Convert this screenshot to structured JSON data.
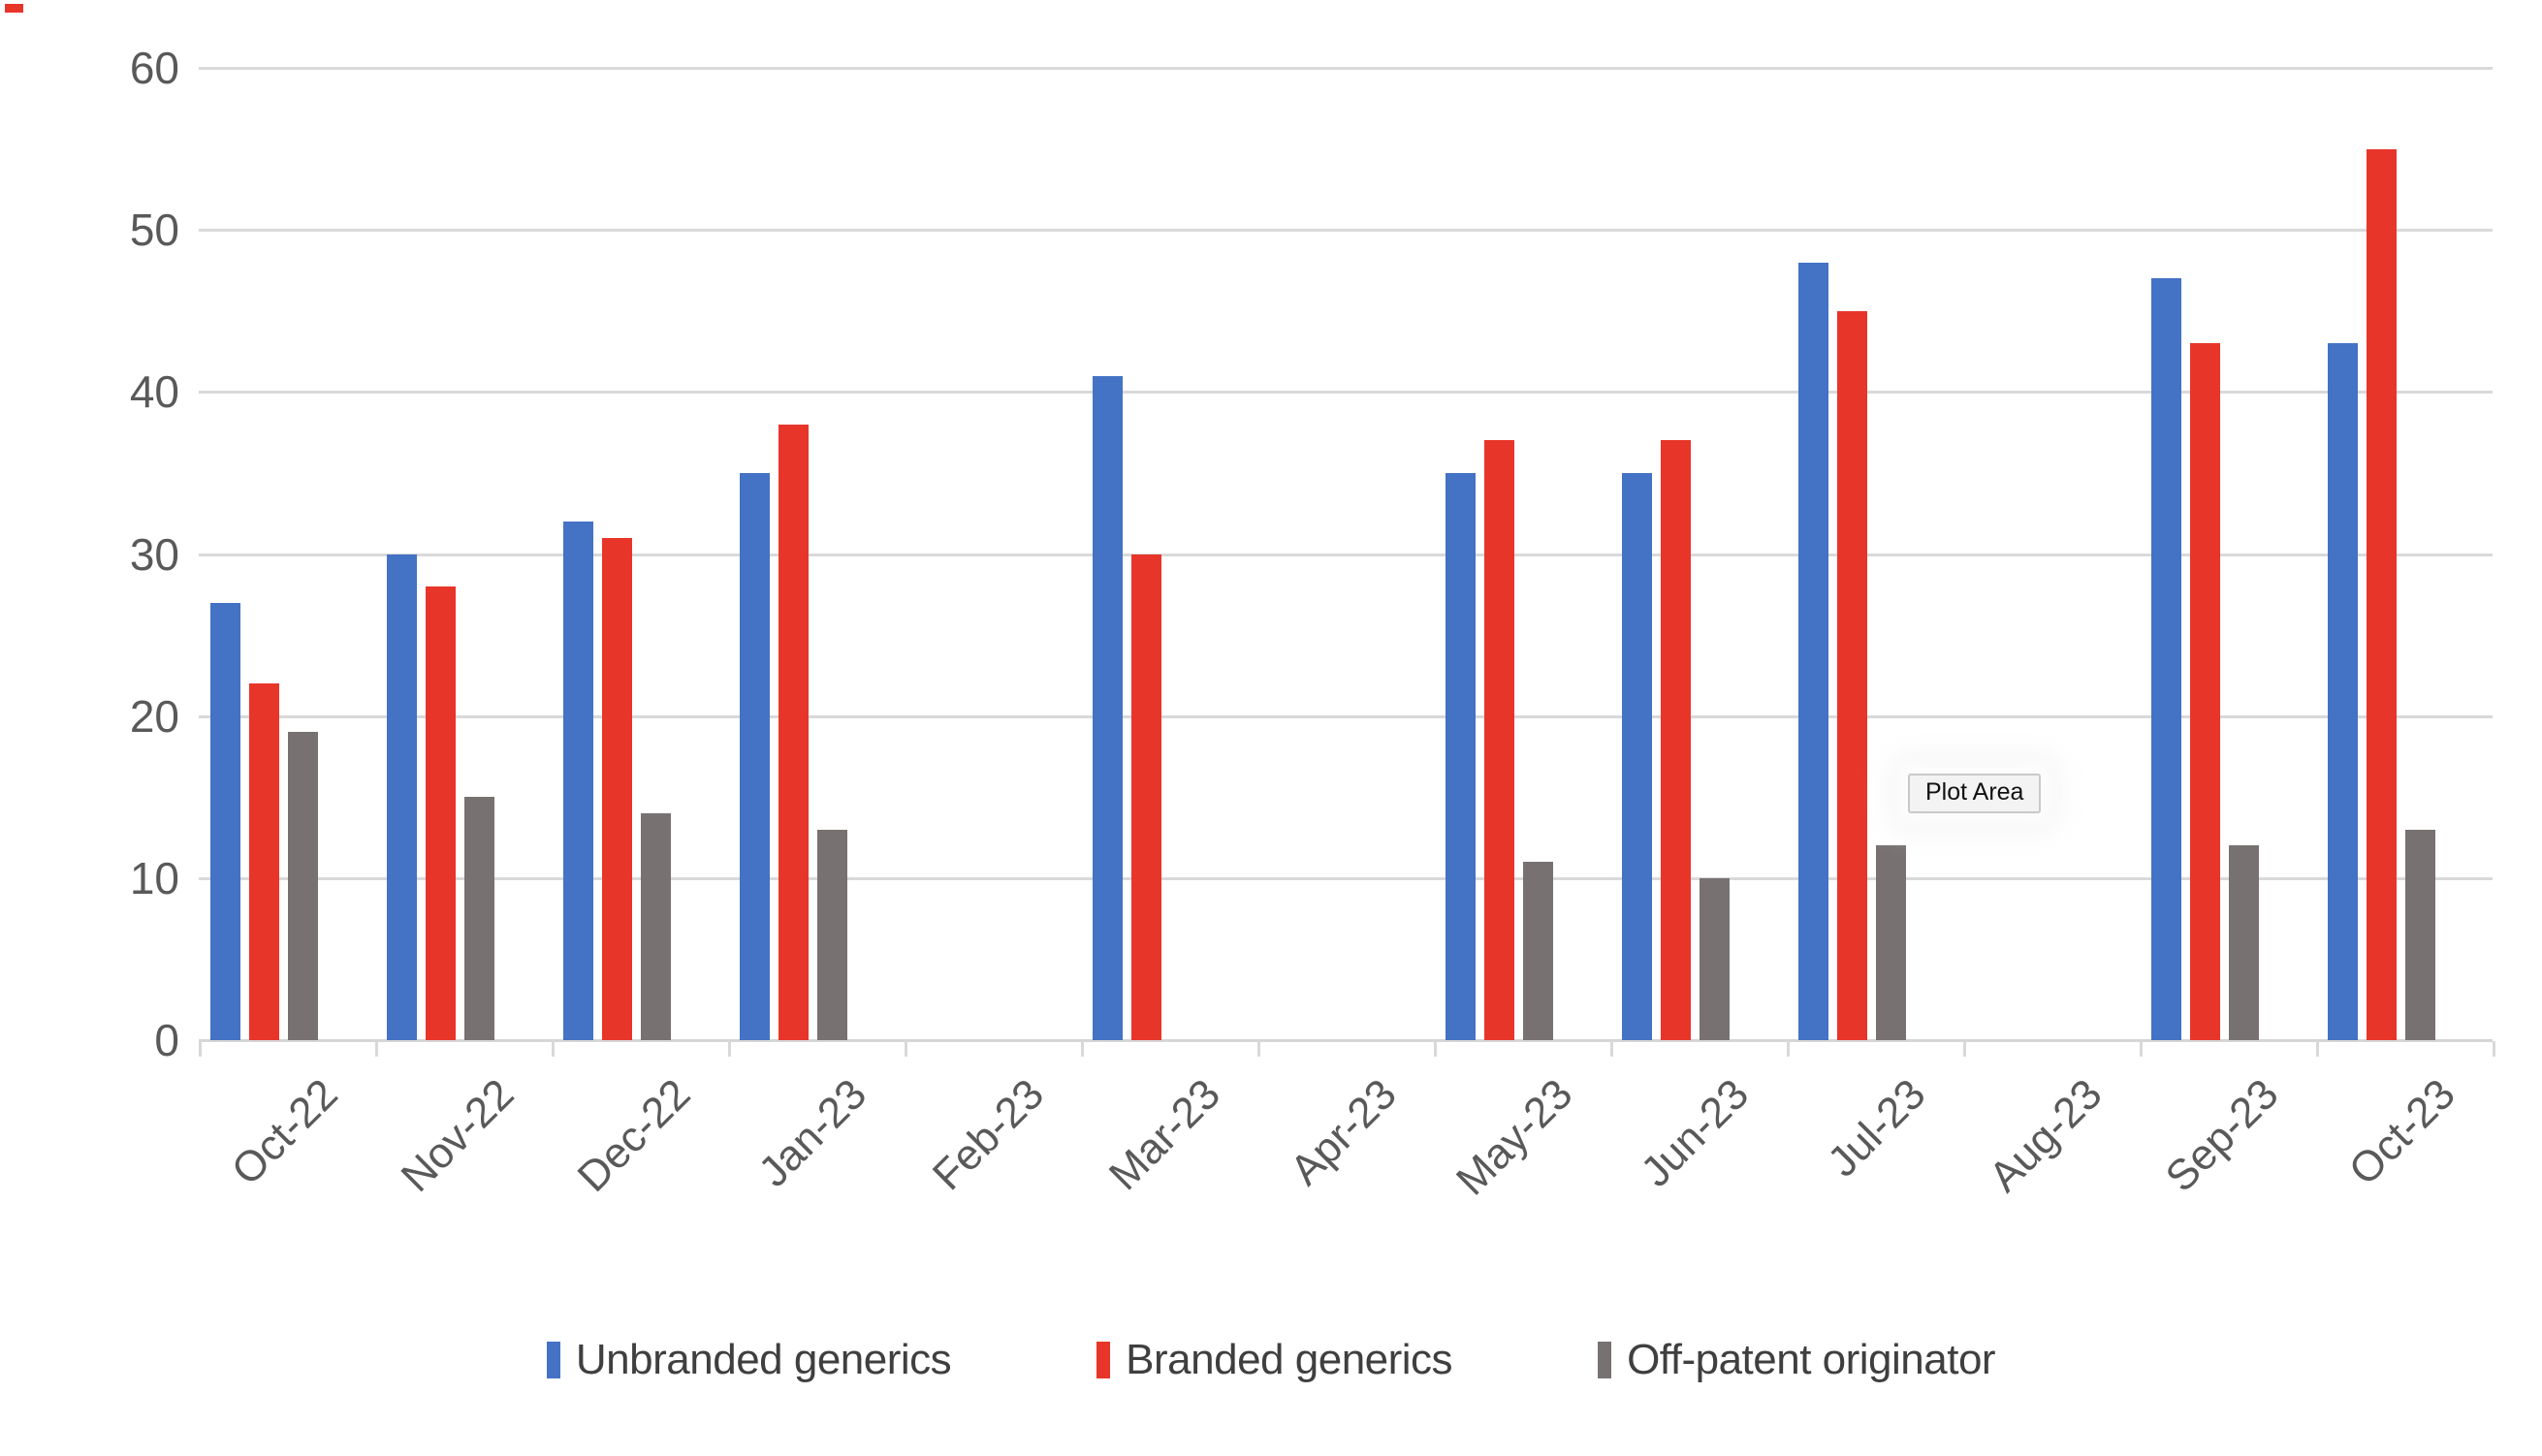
{
  "chart_data": {
    "type": "bar",
    "title": "",
    "xlabel": "",
    "ylabel": "",
    "categories": [
      "Oct-22",
      "Nov-22",
      "Dec-22",
      "Jan-23",
      "Feb-23",
      "Mar-23",
      "Apr-23",
      "May-23",
      "Jun-23",
      "Jul-23",
      "Aug-23",
      "Sep-23",
      "Oct-23"
    ],
    "series": [
      {
        "name": "Unbranded generics",
        "color": "#4472c4",
        "values": [
          27,
          30,
          32,
          35,
          null,
          41,
          null,
          35,
          35,
          48,
          null,
          47,
          43
        ]
      },
      {
        "name": "Branded generics",
        "color": "#e8352a",
        "values": [
          22,
          28,
          31,
          38,
          null,
          30,
          null,
          37,
          37,
          45,
          null,
          43,
          55
        ]
      },
      {
        "name": "Off-patent originator",
        "color": "#777271",
        "values": [
          19,
          15,
          14,
          13,
          null,
          null,
          null,
          11,
          10,
          12,
          null,
          12,
          13
        ]
      }
    ],
    "ylim": [
      0,
      60
    ],
    "yticks": [
      0,
      10,
      20,
      30,
      40,
      50,
      60
    ],
    "grid": true,
    "legend_position": "bottom"
  },
  "plot_area_tooltip": {
    "label": "Plot Area"
  },
  "colors": {
    "gridline": "#d9d9d9",
    "axis_line": "#d6d6d6",
    "axis_text": "#595959",
    "legend_text": "#3f3f3f",
    "background": "#ffffff",
    "corner_mark": "#e8352a"
  }
}
